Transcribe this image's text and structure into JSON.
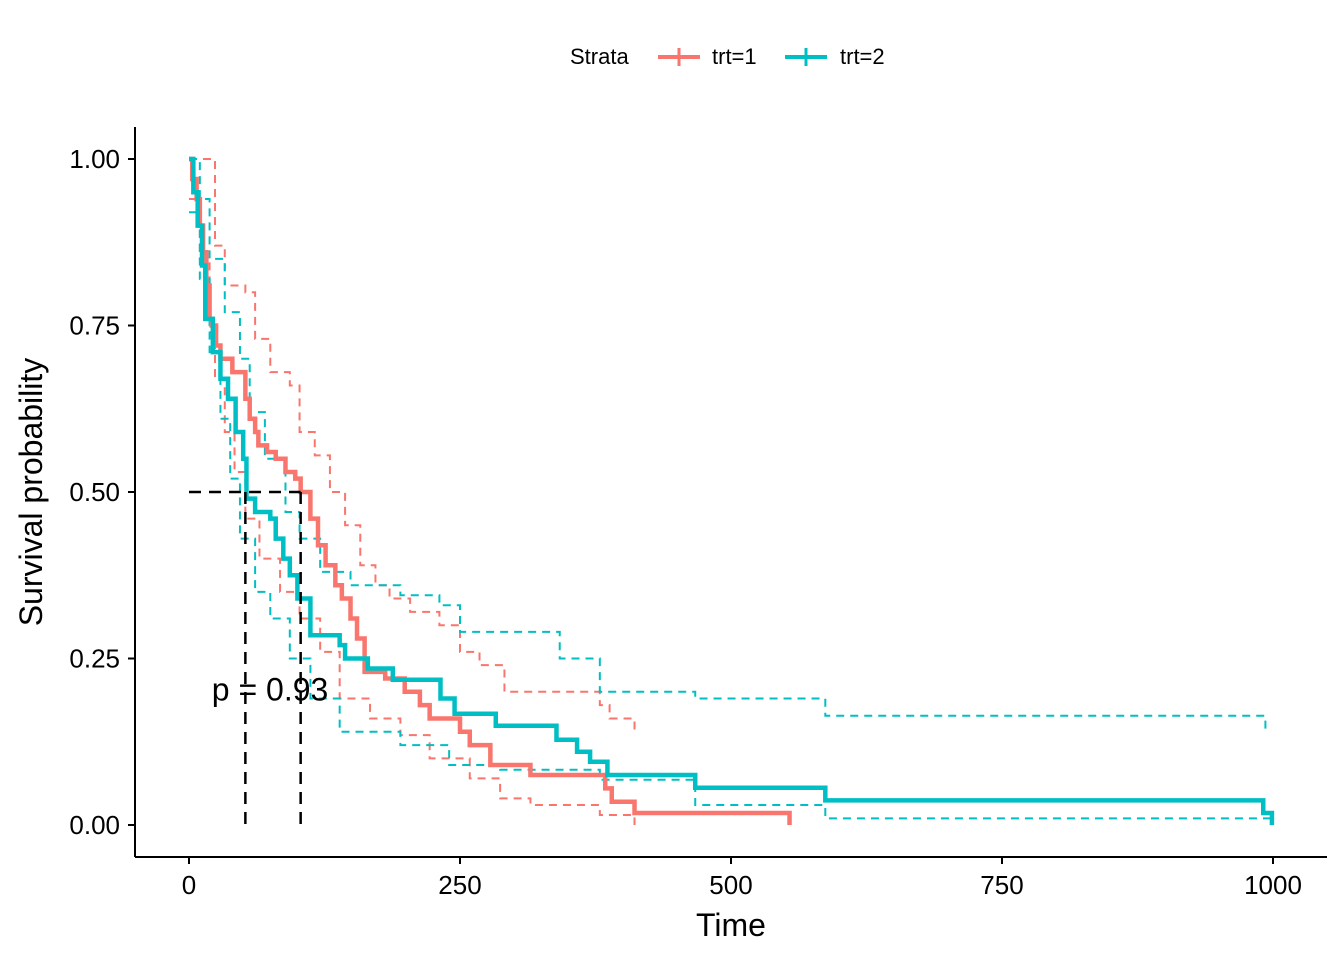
{
  "chart_data": {
    "type": "line",
    "subtype": "kaplan-meier step",
    "xlabel": "Time",
    "ylabel": "Survival probability",
    "xlim": [
      0,
      1000
    ],
    "ylim": [
      0,
      1
    ],
    "xticks": [
      0,
      250,
      500,
      750,
      1000
    ],
    "xtick_labels": [
      "0",
      "250",
      "500",
      "750",
      "1000"
    ],
    "yticks": [
      0,
      0.25,
      0.5,
      0.75,
      1
    ],
    "ytick_labels": [
      "0.00",
      "0.25",
      "0.50",
      "0.75",
      "1.00"
    ],
    "grid": false,
    "legend": {
      "title": "Strata",
      "placement": "top"
    },
    "annotation": {
      "text": "p = 0.93",
      "x": 21,
      "y": 0.19
    },
    "median_line": {
      "y": 0.5,
      "medians": [
        103,
        52
      ]
    },
    "series": [
      {
        "name": "trt=1",
        "color": "#F8766D",
        "t": [
          0,
          3,
          7,
          10,
          13,
          16,
          19,
          21,
          25,
          29,
          40,
          52,
          56,
          61,
          64,
          72,
          80,
          89,
          98,
          103,
          112,
          119,
          126,
          135,
          141,
          149,
          155,
          162,
          181,
          199,
          213,
          222,
          250,
          259,
          278,
          287,
          315,
          384,
          390,
          411,
          554
        ],
        "s": [
          1,
          0.97,
          0.94,
          0.9,
          0.86,
          0.81,
          0.76,
          0.75,
          0.72,
          0.7,
          0.68,
          0.64,
          0.61,
          0.59,
          0.57,
          0.56,
          0.55,
          0.53,
          0.52,
          0.5,
          0.46,
          0.42,
          0.39,
          0.36,
          0.34,
          0.31,
          0.28,
          0.23,
          0.22,
          0.2,
          0.18,
          0.16,
          0.14,
          0.12,
          0.09,
          0.09,
          0.075,
          0.055,
          0.035,
          0.018,
          0
        ],
        "upper_t": [
          0,
          6,
          24,
          33,
          52,
          61,
          75,
          93,
          102,
          116,
          130,
          144,
          158,
          172,
          185,
          204,
          231,
          250,
          268,
          291,
          379,
          388,
          411
        ],
        "upper_s": [
          1,
          1,
          0.87,
          0.81,
          0.8,
          0.73,
          0.68,
          0.66,
          0.59,
          0.555,
          0.5,
          0.45,
          0.39,
          0.36,
          0.34,
          0.32,
          0.3,
          0.26,
          0.24,
          0.2,
          0.18,
          0.16,
          0.135
        ],
        "lower_t": [
          0,
          10,
          19,
          24,
          33,
          42,
          52,
          65,
          84,
          102,
          121,
          139,
          167,
          195,
          222,
          259,
          287,
          315,
          379,
          411
        ],
        "lower_s": [
          0.94,
          0.85,
          0.74,
          0.67,
          0.59,
          0.53,
          0.46,
          0.4,
          0.35,
          0.31,
          0.26,
          0.19,
          0.16,
          0.135,
          0.1,
          0.07,
          0.04,
          0.03,
          0.015,
          0
        ]
      },
      {
        "name": "trt=2",
        "color": "#00BFC4",
        "t": [
          0,
          4,
          8,
          12,
          15,
          22,
          29,
          36,
          43,
          50,
          53,
          61,
          75,
          80,
          87,
          93,
          100,
          112,
          139,
          144,
          165,
          188,
          232,
          245,
          283,
          339,
          358,
          370,
          386,
          467,
          587,
          991,
          999
        ],
        "s": [
          1,
          0.95,
          0.9,
          0.84,
          0.76,
          0.71,
          0.67,
          0.64,
          0.59,
          0.55,
          0.49,
          0.47,
          0.46,
          0.43,
          0.4,
          0.375,
          0.34,
          0.285,
          0.27,
          0.25,
          0.235,
          0.218,
          0.19,
          0.167,
          0.149,
          0.128,
          0.11,
          0.095,
          0.075,
          0.056,
          0.037,
          0.018,
          0
        ],
        "upper_t": [
          0,
          10,
          19,
          33,
          47,
          56,
          70,
          89,
          102,
          121,
          149,
          195,
          231,
          250,
          287,
          342,
          379,
          467,
          587,
          993
        ],
        "upper_s": [
          1,
          0.94,
          0.85,
          0.77,
          0.7,
          0.62,
          0.55,
          0.47,
          0.43,
          0.38,
          0.36,
          0.345,
          0.33,
          0.29,
          0.29,
          0.25,
          0.2,
          0.19,
          0.164,
          0.141
        ],
        "lower_t": [
          0,
          10,
          19,
          29,
          38,
          47,
          61,
          75,
          93,
          112,
          139,
          195,
          240,
          287,
          379,
          467,
          587,
          999
        ],
        "lower_s": [
          0.92,
          0.82,
          0.71,
          0.61,
          0.52,
          0.43,
          0.35,
          0.31,
          0.25,
          0.19,
          0.14,
          0.12,
          0.09,
          0.083,
          0.068,
          0.03,
          0.01,
          0.01
        ]
      }
    ]
  }
}
